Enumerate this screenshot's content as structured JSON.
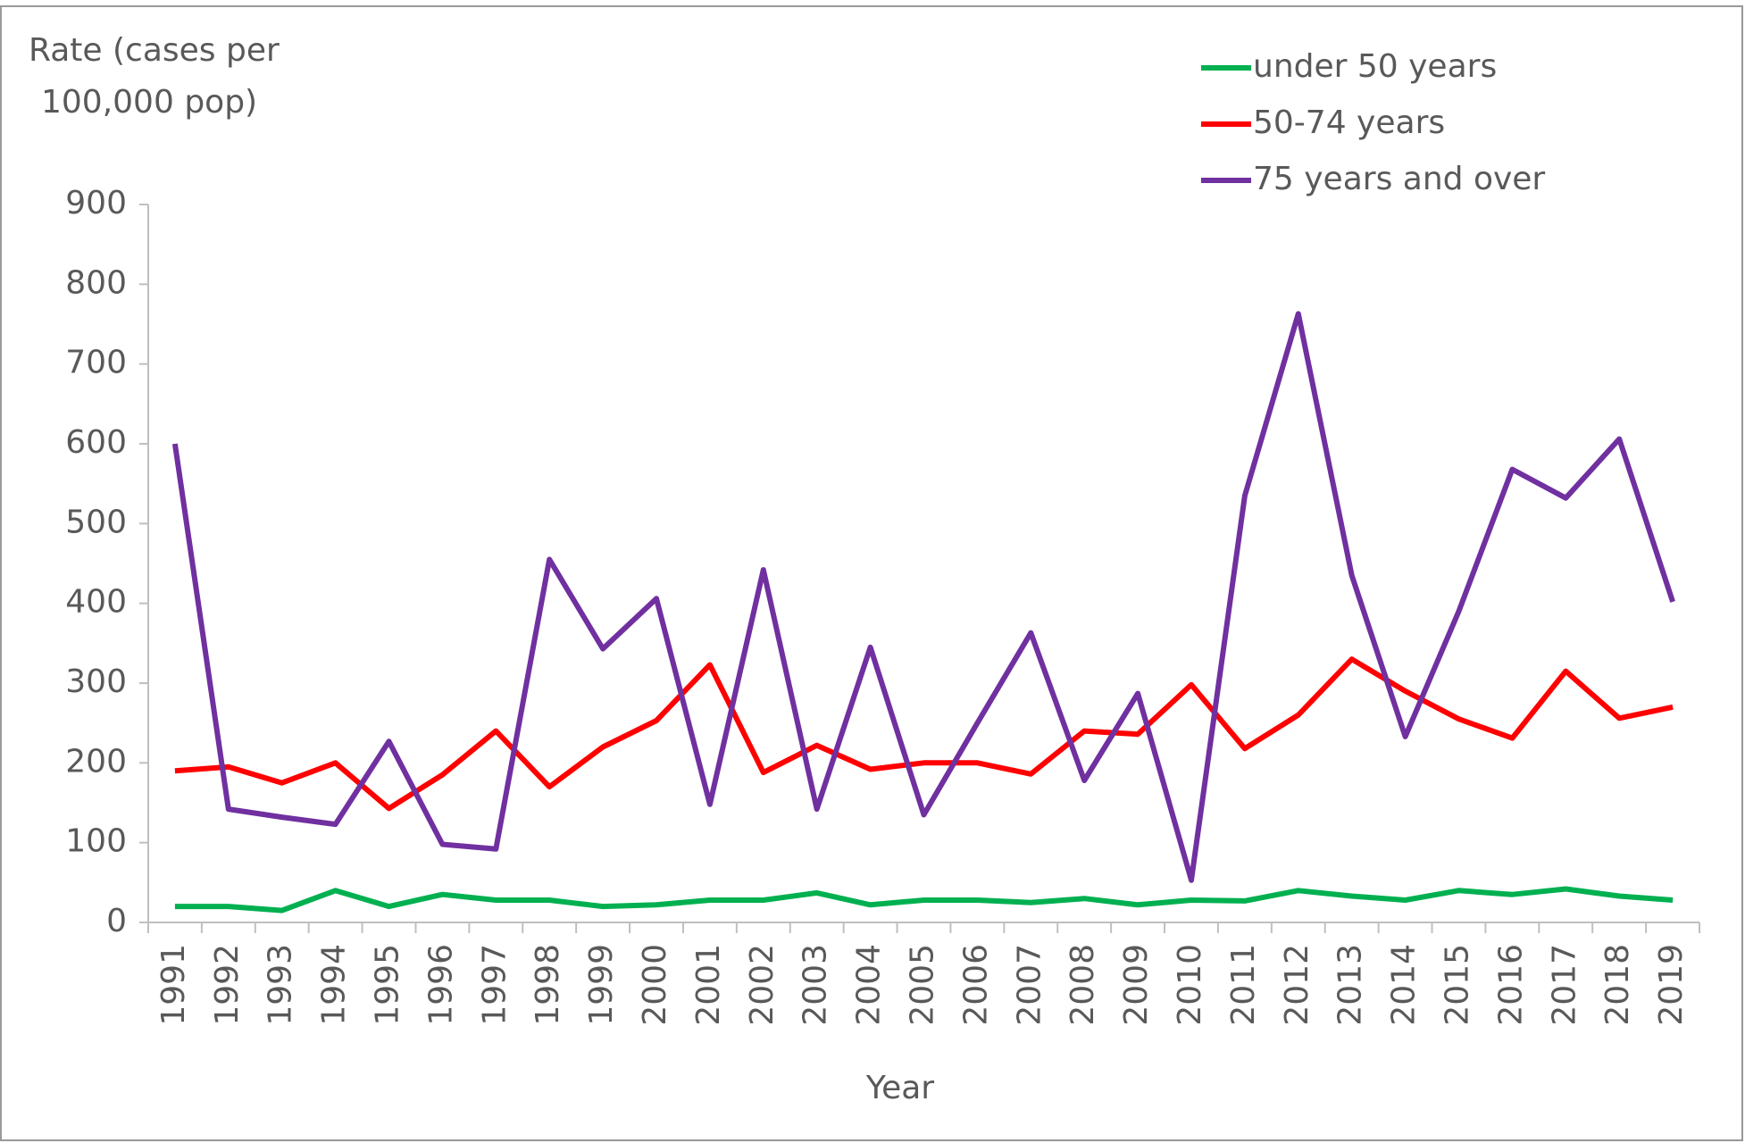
{
  "chart_data": {
    "type": "line",
    "ylabel": [
      "Rate (cases per",
      "100,000 pop)"
    ],
    "xlabel": "Year",
    "categories": [
      "1991",
      "1992",
      "1993",
      "1994",
      "1995",
      "1996",
      "1997",
      "1998",
      "1999",
      "2000",
      "2001",
      "2002",
      "2003",
      "2004",
      "2005",
      "2006",
      "2007",
      "2008",
      "2009",
      "2010",
      "2011",
      "2012",
      "2013",
      "2014",
      "2015",
      "2016",
      "2017",
      "2018",
      "2019"
    ],
    "series": [
      {
        "name": "under 50 years",
        "color": "#00b050",
        "values": [
          20,
          20,
          15,
          40,
          20,
          35,
          28,
          28,
          20,
          22,
          28,
          28,
          37,
          22,
          28,
          28,
          25,
          30,
          22,
          28,
          27,
          40,
          33,
          28,
          40,
          35,
          42,
          33,
          28
        ]
      },
      {
        "name": "50-74 years",
        "color": "#ff0000",
        "values": [
          190,
          195,
          175,
          200,
          143,
          185,
          240,
          170,
          220,
          253,
          323,
          188,
          222,
          192,
          200,
          200,
          186,
          240,
          236,
          298,
          218,
          260,
          330,
          290,
          255,
          231,
          315,
          256,
          270
        ]
      },
      {
        "name": "75 years and over",
        "color": "#7030a0",
        "values": [
          600,
          142,
          132,
          123,
          227,
          98,
          92,
          455,
          343,
          406,
          148,
          442,
          142,
          345,
          135,
          250,
          363,
          178,
          287,
          53,
          535,
          763,
          435,
          233,
          390,
          568,
          532,
          606,
          402
        ]
      }
    ],
    "ylim": [
      0,
      900
    ],
    "yticks": [
      0,
      100,
      200,
      300,
      400,
      500,
      600,
      700,
      800,
      900
    ],
    "legend": "top-right",
    "grid": false
  }
}
